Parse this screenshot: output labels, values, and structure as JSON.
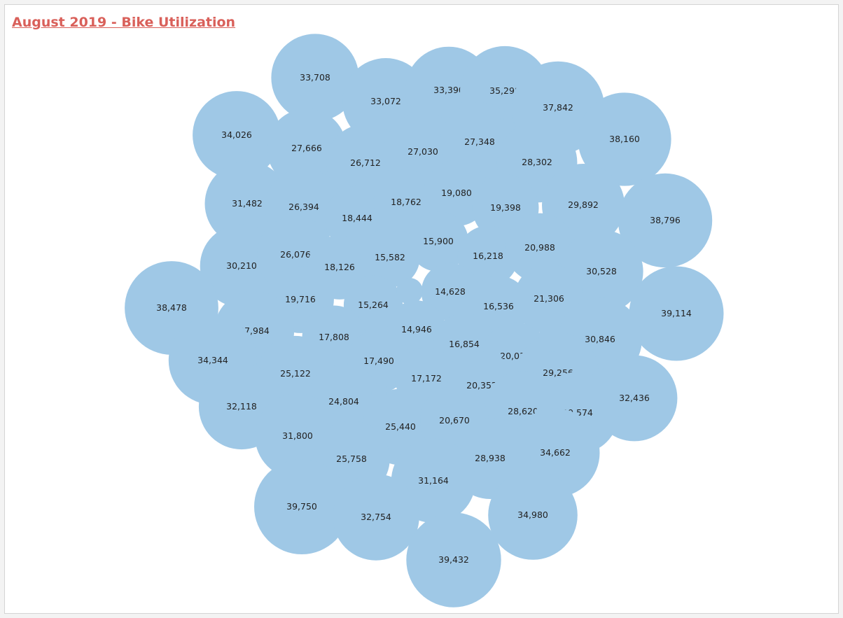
{
  "colors": {
    "bubble": "#9fc8e6",
    "title": "#d9605a"
  },
  "chart_data": {
    "type": "packed-bubble",
    "title": "August 2019 - Bike Utilization",
    "values": [
      33708,
      33072,
      33390,
      35298,
      37842,
      34026,
      27666,
      26712,
      27030,
      27348,
      28302,
      38160,
      31482,
      26394,
      18444,
      18762,
      19080,
      19398,
      29892,
      38796,
      15900,
      16218,
      20988,
      30210,
      26076,
      18126,
      15582,
      30528,
      38478,
      19716,
      15264,
      14628,
      16536,
      21306,
      39114,
      27984,
      17808,
      14946,
      16854,
      30846,
      34344,
      17490,
      20034,
      29256,
      25122,
      17172,
      20352,
      32436,
      32118,
      24804,
      28620,
      29574,
      25440,
      20670,
      31800,
      34662,
      25758,
      28938,
      31164,
      39750,
      32754,
      34980,
      39432
    ]
  }
}
